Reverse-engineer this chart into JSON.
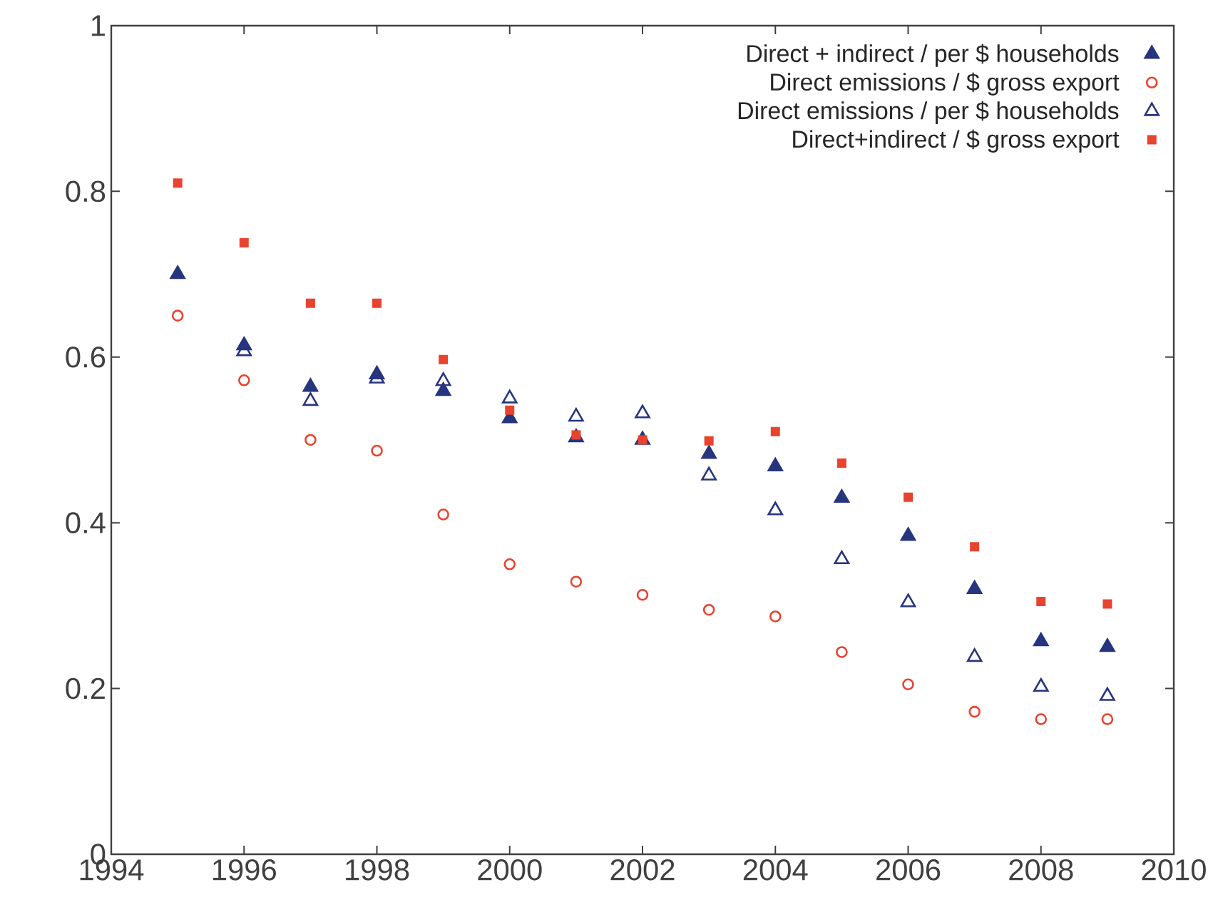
{
  "chart_data": {
    "type": "scatter",
    "x": [
      1995,
      1996,
      1997,
      1998,
      1999,
      2000,
      2001,
      2002,
      2003,
      2004,
      2005,
      2006,
      2007,
      2008,
      2009
    ],
    "series": [
      {
        "name": "Direct + indirect / per $ households",
        "color": "#27357f",
        "marker": "triangle",
        "values": [
          0.7,
          0.614,
          0.564,
          0.579,
          0.559,
          0.526,
          0.503,
          0.5,
          0.483,
          0.468,
          0.43,
          0.384,
          0.32,
          0.257,
          0.25
        ]
      },
      {
        "name": "Direct emissions / $ gross export",
        "color": "#e8432e",
        "marker": "circle",
        "values": [
          0.65,
          0.572,
          0.5,
          0.487,
          0.41,
          0.35,
          0.329,
          0.313,
          0.295,
          0.287,
          0.244,
          0.205,
          0.172,
          0.163,
          0.163
        ]
      },
      {
        "name": "Direct emissions / per $ households",
        "color": "#27357f",
        "marker": "triangle",
        "values": [
          null,
          0.607,
          0.547,
          0.574,
          0.571,
          0.55,
          0.528,
          0.532,
          0.457,
          0.415,
          0.356,
          0.304,
          0.238,
          0.202,
          0.191
        ]
      },
      {
        "name": "Direct+indirect / $ gross export",
        "color": "#e8432e",
        "marker": "square",
        "values": [
          0.81,
          0.738,
          0.665,
          0.665,
          0.597,
          0.536,
          0.506,
          0.5,
          0.499,
          0.51,
          0.472,
          0.431,
          0.371,
          0.305,
          0.302
        ]
      }
    ],
    "xlim": [
      1994,
      2010
    ],
    "xticks": [
      1994,
      1996,
      1998,
      2000,
      2002,
      2004,
      2006,
      2008,
      2010
    ],
    "ylim": [
      0,
      1
    ],
    "yticks": [
      0,
      0.2,
      0.4,
      0.6,
      0.8,
      1
    ],
    "legend": "top right",
    "grid": false
  }
}
